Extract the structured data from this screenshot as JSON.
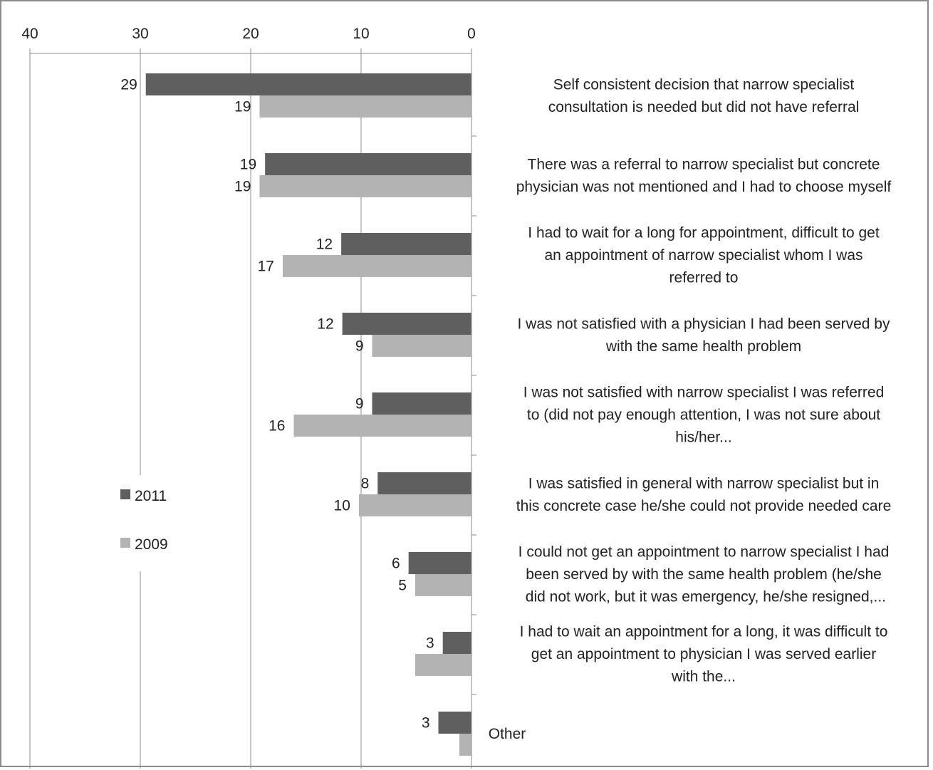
{
  "chart_data": {
    "type": "bar",
    "orientation": "horizontal",
    "x_axis": {
      "reversed": true,
      "range": [
        0,
        40
      ],
      "ticks": [
        "40",
        "30",
        "20",
        "10",
        "0"
      ],
      "tick_position": "top"
    },
    "grid": true,
    "legend": "left-middle",
    "categories": [
      [
        "Self consistent decision that narrow specialist",
        "consultation is needed but did not have referral"
      ],
      [
        "There was a referral to narrow specialist but concrete",
        "physician was not mentioned and I had to choose myself"
      ],
      [
        "I had to wait for a long for appointment, difficult to get",
        "an appointment of narrow specialist whom I was",
        "referred to"
      ],
      [
        "I was not satisfied with a physician I had been served by",
        "with the same health problem"
      ],
      [
        "I was not satisfied with narrow specialist I was referred",
        "to (did not pay enough attention, I was not sure about",
        "his/her..."
      ],
      [
        "I was satisfied in general with narrow specialist but in",
        "this concrete case he/she could not provide needed care"
      ],
      [
        "I could not get an appointment to narrow specialist I had",
        "been served by with the same health problem  (he/she",
        " did not work, but it was emergency, he/she resigned,..."
      ],
      [
        "I had to wait an appointment for a long, it was difficult to",
        "get an appointment to physician I was served earlier",
        "with the..."
      ],
      [
        "Other"
      ]
    ],
    "series": [
      {
        "name": "2011",
        "color": "#5f5f5f",
        "values": [
          29.5,
          18.7,
          11.8,
          11.7,
          9.0,
          8.5,
          5.7,
          2.6,
          3.0
        ],
        "labels": [
          "29",
          "19",
          "12",
          "12",
          "9",
          "8",
          "6",
          "3",
          "3"
        ]
      },
      {
        "name": "2009",
        "color": "#b3b3b3",
        "values": [
          19.2,
          19.2,
          17.1,
          9.0,
          16.1,
          10.2,
          5.1,
          5.1,
          1.1
        ],
        "labels": [
          "19",
          "19",
          "17",
          "9",
          "16",
          "10",
          "5",
          "",
          ""
        ]
      }
    ]
  }
}
